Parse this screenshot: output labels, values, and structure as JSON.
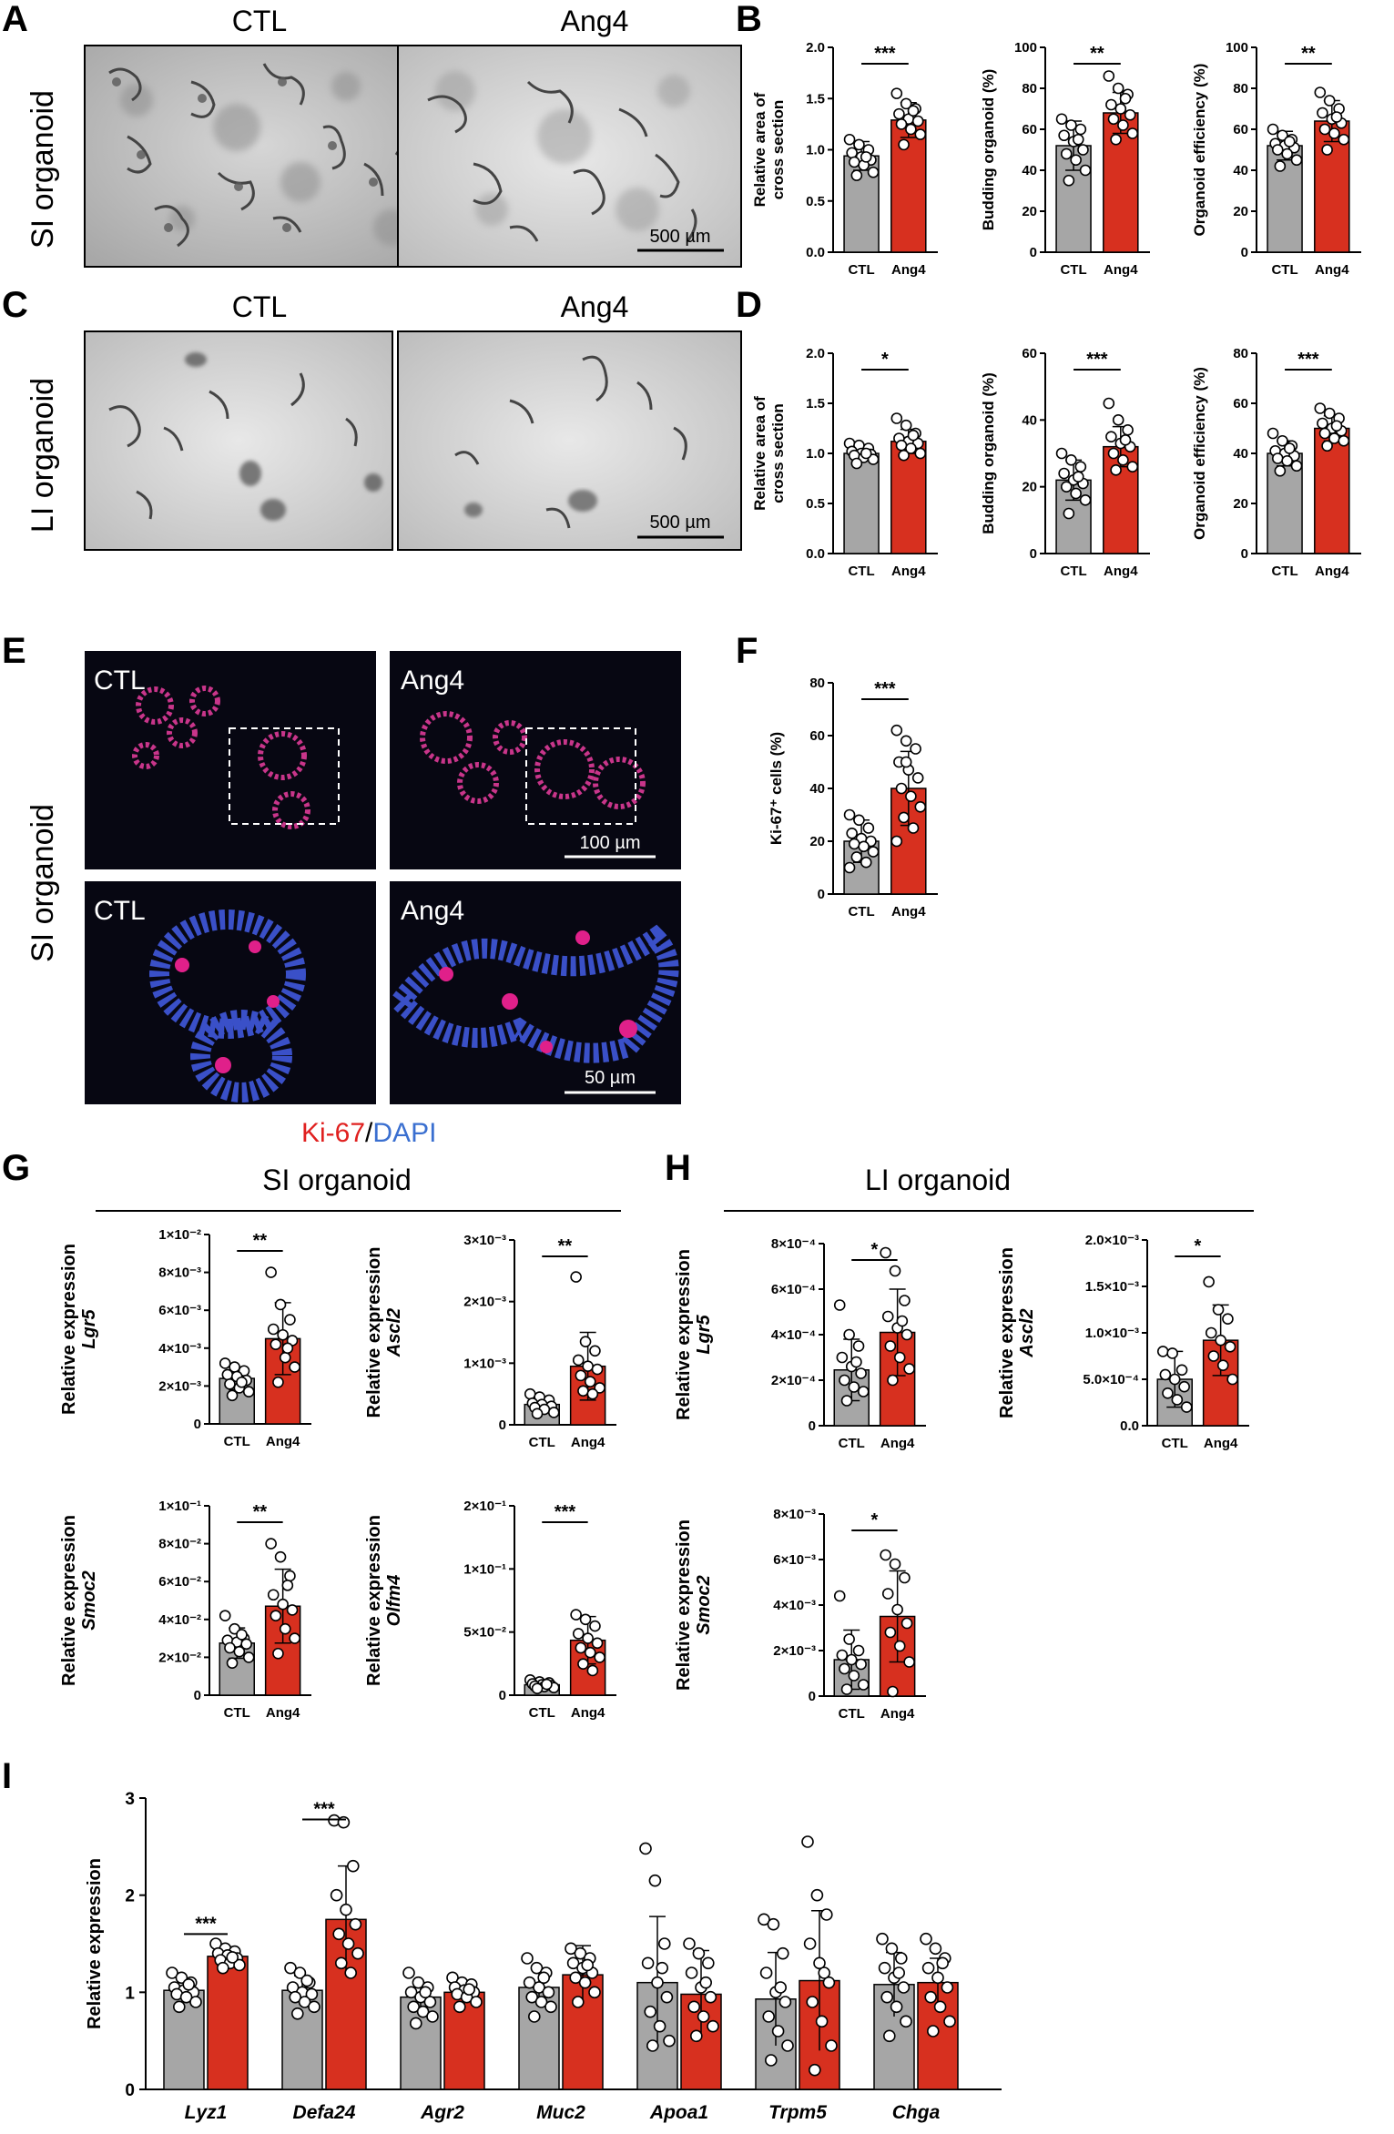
{
  "panel_letters": {
    "A": "A",
    "B": "B",
    "C": "C",
    "D": "D",
    "E": "E",
    "F": "F",
    "G": "G",
    "H": "H",
    "I": "I"
  },
  "row_labels": {
    "A": "SI organoid",
    "C": "LI organoid",
    "E": "SI organoid"
  },
  "group_titles": {
    "G": "SI organoid",
    "H": "LI organoid"
  },
  "conditions": {
    "ctl": "CTL",
    "ang4": "Ang4"
  },
  "scale_bars": {
    "A": "500 µm",
    "C": "500 µm",
    "E_top": "100 µm",
    "E_bottom": "50 µm"
  },
  "stain_legend": {
    "ki67": "Ki-67",
    "sep": "/",
    "dapi": "DAPI"
  },
  "colors": {
    "ctl": "#a6a6a6",
    "ang4": "#d7301f",
    "ki67": "#e0201f",
    "dapi": "#3a6fd0"
  },
  "chart_data": [
    {
      "id": "B1",
      "type": "bar",
      "ylabel": "Relative area of cross section",
      "categories": [
        "CTL",
        "Ang4"
      ],
      "values": [
        0.94,
        1.29
      ],
      "errors": [
        0.14,
        0.17
      ],
      "ylim": [
        0,
        2.0
      ],
      "yticks": [
        "0.0",
        "0.5",
        "1.0",
        "1.5",
        "2.0"
      ],
      "significance": "***",
      "points": [
        [
          1.1,
          1.05,
          1.0,
          0.97,
          0.93,
          0.9,
          0.88,
          0.85,
          0.78,
          0.75,
          0.93
        ],
        [
          1.55,
          1.45,
          1.4,
          1.35,
          1.3,
          1.28,
          1.25,
          1.2,
          1.15,
          1.05,
          1.38
        ]
      ]
    },
    {
      "id": "B2",
      "type": "bar",
      "ylabel": "Budding organoid (%)",
      "categories": [
        "CTL",
        "Ang4"
      ],
      "values": [
        52,
        68
      ],
      "errors": [
        12,
        10
      ],
      "ylim": [
        0,
        100
      ],
      "yticks": [
        "0",
        "20",
        "40",
        "60",
        "80",
        "100"
      ],
      "significance": "**",
      "points": [
        [
          65,
          62,
          60,
          57,
          54,
          50,
          48,
          45,
          40,
          35,
          55
        ],
        [
          86,
          80,
          77,
          72,
          70,
          67,
          65,
          62,
          58,
          55,
          75
        ]
      ]
    },
    {
      "id": "B3",
      "type": "bar",
      "ylabel": "Organoid efficiency (%)",
      "categories": [
        "CTL",
        "Ang4"
      ],
      "values": [
        52,
        64
      ],
      "errors": [
        7,
        10
      ],
      "ylim": [
        0,
        100
      ],
      "yticks": [
        "0",
        "20",
        "40",
        "60",
        "80",
        "100"
      ],
      "significance": "**",
      "points": [
        [
          60,
          57,
          55,
          53,
          52,
          51,
          50,
          48,
          45,
          42,
          54
        ],
        [
          78,
          74,
          70,
          68,
          65,
          63,
          60,
          58,
          55,
          50,
          66
        ]
      ]
    },
    {
      "id": "D1",
      "type": "bar",
      "ylabel": "Relative area of cross section",
      "categories": [
        "CTL",
        "Ang4"
      ],
      "values": [
        1.0,
        1.12
      ],
      "errors": [
        0.07,
        0.12
      ],
      "ylim": [
        0,
        2.0
      ],
      "yticks": [
        "0.0",
        "0.5",
        "1.0",
        "1.5",
        "2.0"
      ],
      "significance": "*",
      "points": [
        [
          1.1,
          1.08,
          1.05,
          1.02,
          1.0,
          0.99,
          0.98,
          0.96,
          0.94,
          0.9,
          1.0
        ],
        [
          1.35,
          1.28,
          1.2,
          1.15,
          1.12,
          1.1,
          1.08,
          1.05,
          1.0,
          0.98,
          1.18
        ]
      ]
    },
    {
      "id": "D2",
      "type": "bar",
      "ylabel": "Budding organoid (%)",
      "categories": [
        "CTL",
        "Ang4"
      ],
      "values": [
        22,
        32
      ],
      "errors": [
        6,
        6
      ],
      "ylim": [
        0,
        60
      ],
      "yticks": [
        "0",
        "20",
        "40",
        "60"
      ],
      "significance": "***",
      "points": [
        [
          30,
          28,
          26,
          24,
          22,
          21,
          20,
          18,
          16,
          12,
          23
        ],
        [
          45,
          40,
          37,
          35,
          33,
          32,
          30,
          28,
          26,
          25,
          34
        ]
      ]
    },
    {
      "id": "D3",
      "type": "bar",
      "ylabel": "Organoid efficiency (%)",
      "categories": [
        "CTL",
        "Ang4"
      ],
      "values": [
        40,
        50
      ],
      "errors": [
        5,
        5
      ],
      "ylim": [
        0,
        80
      ],
      "yticks": [
        "0",
        "20",
        "40",
        "60",
        "80"
      ],
      "significance": "***",
      "points": [
        [
          48,
          45,
          43,
          41,
          40,
          39,
          38,
          37,
          35,
          33,
          42
        ],
        [
          58,
          56,
          54,
          52,
          50,
          49,
          48,
          46,
          45,
          43,
          51
        ]
      ]
    },
    {
      "id": "F",
      "type": "bar",
      "ylabel": "Ki-67⁺ cells (%)",
      "categories": [
        "CTL",
        "Ang4"
      ],
      "values": [
        20,
        40
      ],
      "errors": [
        8,
        14
      ],
      "ylim": [
        0,
        80
      ],
      "yticks": [
        "0",
        "20",
        "40",
        "60",
        "80"
      ],
      "significance": "***",
      "points": [
        [
          30,
          28,
          25,
          23,
          21,
          20,
          19,
          18,
          16,
          14,
          12,
          10
        ],
        [
          62,
          58,
          55,
          50,
          47,
          44,
          40,
          37,
          33,
          29,
          25,
          20,
          50
        ]
      ]
    },
    {
      "id": "G1",
      "type": "bar",
      "ylabel_top": "Relative expression",
      "ylabel_gene": "Lgr5",
      "categories": [
        "CTL",
        "Ang4"
      ],
      "values": [
        2.4,
        4.5
      ],
      "errors": [
        0.6,
        1.9
      ],
      "ylim": [
        0,
        10
      ],
      "yticks": [
        "0",
        "2×10⁻³",
        "4×10⁻³",
        "6×10⁻³",
        "8×10⁻³",
        "1×10⁻²"
      ],
      "significance": "**",
      "points": [
        [
          3.2,
          3.0,
          2.8,
          2.6,
          2.5,
          2.3,
          2.1,
          1.9,
          1.7,
          1.5,
          2.2
        ],
        [
          8.0,
          6.3,
          5.5,
          5.0,
          4.7,
          4.4,
          4.2,
          3.5,
          3.0,
          2.2,
          4.0
        ]
      ]
    },
    {
      "id": "G2",
      "type": "bar",
      "ylabel_top": "Relative expression",
      "ylabel_gene": "Ascl2",
      "categories": [
        "CTL",
        "Ang4"
      ],
      "values": [
        0.33,
        0.95
      ],
      "errors": [
        0.1,
        0.55
      ],
      "ylim": [
        0,
        3
      ],
      "yticks": [
        "0",
        "1×10⁻³",
        "2×10⁻³",
        "3×10⁻³"
      ],
      "significance": "**",
      "points": [
        [
          0.5,
          0.45,
          0.4,
          0.35,
          0.33,
          0.3,
          0.28,
          0.25,
          0.2,
          0.18
        ],
        [
          2.4,
          1.35,
          1.2,
          1.05,
          0.95,
          0.9,
          0.8,
          0.7,
          0.6,
          0.55,
          0.5
        ]
      ]
    },
    {
      "id": "G3",
      "type": "bar",
      "ylabel_top": "Relative expression",
      "ylabel_gene": "Smoc2",
      "categories": [
        "CTL",
        "Ang4"
      ],
      "values": [
        2.75,
        4.7
      ],
      "errors": [
        0.8,
        1.95
      ],
      "ylim": [
        0,
        10
      ],
      "yticks": [
        "0",
        "2×10⁻²",
        "4×10⁻²",
        "6×10⁻²",
        "8×10⁻²",
        "1×10⁻¹"
      ],
      "significance": "**",
      "points": [
        [
          4.2,
          3.5,
          3.0,
          2.9,
          2.8,
          2.7,
          2.5,
          2.3,
          2.0,
          1.7,
          3.2
        ],
        [
          8.0,
          7.3,
          6.3,
          5.3,
          4.8,
          4.5,
          4.2,
          3.5,
          3.0,
          2.2,
          5.8
        ]
      ]
    },
    {
      "id": "G4",
      "type": "bar",
      "ylabel_top": "Relative expression",
      "ylabel_gene": "Olfm4",
      "categories": [
        "CTL",
        "Ang4"
      ],
      "values": [
        1.1,
        5.8
      ],
      "errors": [
        0.3,
        2.5
      ],
      "ylim": [
        0,
        20
      ],
      "yticks": [
        "0",
        "5×10⁻²",
        "1×10⁻¹",
        "2×10⁻¹"
      ],
      "significance": "***",
      "points": [
        [
          1.6,
          1.4,
          1.3,
          1.2,
          1.1,
          1.0,
          0.95,
          0.9,
          0.8,
          0.7,
          1.15
        ],
        [
          8.5,
          8.0,
          7.3,
          6.5,
          6.0,
          5.5,
          5.0,
          4.5,
          4.0,
          3.3,
          2.6
        ]
      ]
    },
    {
      "id": "H1",
      "type": "bar",
      "ylabel_top": "Relative expression",
      "ylabel_gene": "Lgr5",
      "categories": [
        "CTL",
        "Ang4"
      ],
      "values": [
        2.45,
        4.1
      ],
      "errors": [
        1.35,
        1.9
      ],
      "ylim": [
        0,
        8
      ],
      "yticks": [
        "0",
        "2×10⁻⁴",
        "4×10⁻⁴",
        "6×10⁻⁴",
        "8×10⁻⁴"
      ],
      "significance": "*",
      "points": [
        [
          5.3,
          4.0,
          3.5,
          3.0,
          2.6,
          2.3,
          2.0,
          1.7,
          1.5,
          1.1,
          2.8
        ],
        [
          7.6,
          6.8,
          5.5,
          4.8,
          4.3,
          4.0,
          3.5,
          3.0,
          2.5,
          2.0,
          4.6
        ]
      ]
    },
    {
      "id": "H2",
      "type": "bar",
      "ylabel_top": "Relative expression",
      "ylabel_gene": "Ascl2",
      "categories": [
        "CTL",
        "Ang4"
      ],
      "values": [
        0.5,
        0.92
      ],
      "errors": [
        0.3,
        0.38
      ],
      "ylim": [
        0,
        2.0
      ],
      "yticks": [
        "0.0",
        "5.0×10⁻⁴",
        "1.0×10⁻³",
        "1.5×10⁻³",
        "2.0×10⁻³"
      ],
      "significance": "*",
      "points": [
        [
          0.8,
          0.78,
          0.6,
          0.55,
          0.5,
          0.42,
          0.35,
          0.28,
          0.2
        ],
        [
          1.55,
          1.25,
          1.15,
          1.0,
          0.92,
          0.85,
          0.75,
          0.65,
          0.5
        ]
      ]
    },
    {
      "id": "H3",
      "type": "bar",
      "ylabel_top": "Relative expression",
      "ylabel_gene": "Smoc2",
      "categories": [
        "CTL",
        "Ang4"
      ],
      "values": [
        1.6,
        3.5
      ],
      "errors": [
        1.3,
        2.0
      ],
      "ylim": [
        0,
        8
      ],
      "yticks": [
        "0",
        "2×10⁻³",
        "4×10⁻³",
        "6×10⁻³",
        "8×10⁻³"
      ],
      "significance": "*",
      "points": [
        [
          4.4,
          2.5,
          2.0,
          1.8,
          1.6,
          1.4,
          1.2,
          0.9,
          0.5,
          0.3
        ],
        [
          6.2,
          5.8,
          5.2,
          4.5,
          3.8,
          3.2,
          2.8,
          2.2,
          1.5,
          0.2
        ]
      ]
    },
    {
      "id": "I",
      "type": "bar",
      "ylabel": "Relative expression",
      "categories": [
        "Lyz1",
        "Defa24",
        "Agr2",
        "Muc2",
        "Apoa1",
        "Trpm5",
        "Chga"
      ],
      "ylim": [
        0,
        3
      ],
      "yticks": [
        "0",
        "1",
        "2",
        "3"
      ],
      "series": [
        {
          "name": "CTL",
          "values": [
            1.02,
            1.02,
            0.95,
            1.05,
            1.1,
            0.93,
            1.08
          ],
          "errors": [
            0.12,
            0.15,
            0.15,
            0.2,
            0.68,
            0.48,
            0.33
          ]
        },
        {
          "name": "Ang4",
          "values": [
            1.37,
            1.75,
            1.0,
            1.18,
            0.98,
            1.12,
            1.1
          ],
          "errors": [
            0.1,
            0.55,
            0.12,
            0.3,
            0.45,
            0.72,
            0.25
          ]
        }
      ],
      "significance": {
        "Lyz1": "***",
        "Defa24": "***"
      },
      "points": {
        "ctl": [
          [
            1.2,
            1.15,
            1.1,
            1.05,
            1.02,
            1.0,
            0.98,
            0.95,
            0.9,
            0.85,
            1.08
          ],
          [
            1.25,
            1.2,
            1.1,
            1.05,
            1.0,
            0.98,
            0.95,
            0.9,
            0.85,
            0.78,
            1.12
          ],
          [
            1.2,
            1.1,
            1.05,
            1.0,
            0.95,
            0.9,
            0.85,
            0.8,
            0.75,
            0.68,
            1.0
          ],
          [
            1.35,
            1.25,
            1.2,
            1.1,
            1.05,
            1.0,
            0.95,
            0.9,
            0.85,
            0.75,
            1.15
          ],
          [
            2.48,
            2.15,
            1.5,
            1.3,
            1.1,
            0.95,
            0.8,
            0.65,
            0.5,
            0.45,
            1.25
          ],
          [
            1.75,
            1.7,
            1.4,
            1.2,
            1.0,
            0.9,
            0.75,
            0.6,
            0.45,
            0.3,
            1.05
          ],
          [
            1.55,
            1.45,
            1.35,
            1.25,
            1.15,
            1.05,
            0.95,
            0.85,
            0.7,
            0.55,
            1.2
          ]
        ],
        "ang4": [
          [
            1.5,
            1.45,
            1.42,
            1.4,
            1.38,
            1.35,
            1.33,
            1.3,
            1.28,
            1.25,
            1.36
          ],
          [
            2.77,
            2.75,
            2.3,
            2.0,
            1.85,
            1.7,
            1.6,
            1.5,
            1.4,
            1.3,
            1.2
          ],
          [
            1.15,
            1.1,
            1.08,
            1.05,
            1.02,
            1.0,
            0.98,
            0.95,
            0.9,
            0.85,
            1.03
          ],
          [
            1.45,
            1.4,
            1.35,
            1.3,
            1.25,
            1.2,
            1.15,
            1.1,
            1.0,
            0.9,
            1.28
          ],
          [
            1.5,
            1.4,
            1.3,
            1.2,
            1.05,
            0.95,
            0.85,
            0.75,
            0.65,
            0.55,
            1.1
          ],
          [
            2.55,
            2.0,
            1.8,
            1.5,
            1.3,
            1.1,
            0.9,
            0.7,
            0.45,
            0.2,
            1.2
          ],
          [
            1.55,
            1.45,
            1.35,
            1.25,
            1.15,
            1.05,
            0.95,
            0.85,
            0.7,
            0.6,
            1.3
          ]
        ]
      }
    }
  ]
}
